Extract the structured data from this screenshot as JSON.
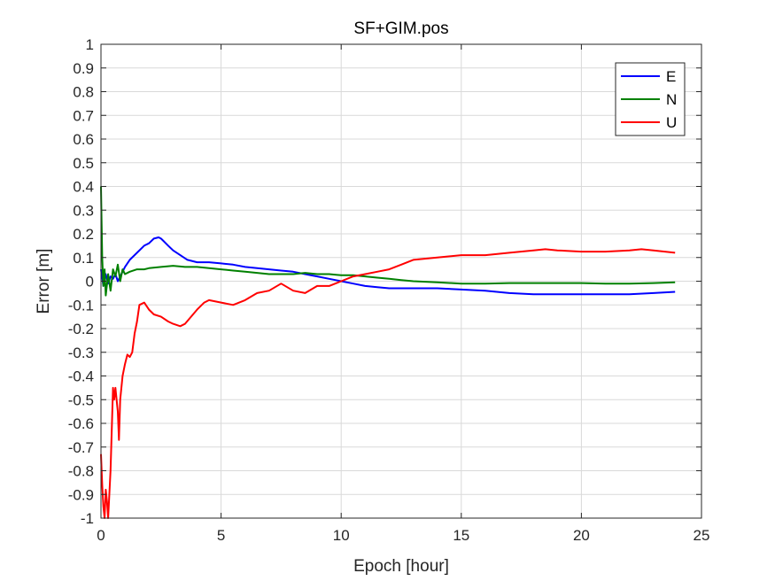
{
  "chart_data": {
    "type": "line",
    "title": "SF+GIM.pos",
    "xlabel": "Epoch [hour]",
    "ylabel": "Error [m]",
    "xlim": [
      0,
      25
    ],
    "ylim": [
      -1,
      1
    ],
    "xticks": [
      0,
      5,
      10,
      15,
      20,
      25
    ],
    "xtick_labels": [
      "0",
      "5",
      "10",
      "15",
      "20",
      "25"
    ],
    "yticks": [
      -1,
      -0.9,
      -0.8,
      -0.7,
      -0.6,
      -0.5,
      -0.4,
      -0.3,
      -0.2,
      -0.1,
      0,
      0.1,
      0.2,
      0.3,
      0.4,
      0.5,
      0.6,
      0.7,
      0.8,
      0.9,
      1
    ],
    "ytick_labels": [
      "-1",
      "-0.9",
      "-0.8",
      "-0.7",
      "-0.6",
      "-0.5",
      "-0.4",
      "-0.3",
      "-0.2",
      "-0.1",
      "0",
      "0.1",
      "0.2",
      "0.3",
      "0.4",
      "0.5",
      "0.6",
      "0.7",
      "0.8",
      "0.9",
      "1"
    ],
    "grid": true,
    "legend_position": "top-right",
    "series": [
      {
        "name": "E",
        "color": "#0000ff",
        "x": [
          0,
          0.1,
          0.2,
          0.3,
          0.4,
          0.5,
          0.6,
          0.7,
          0.8,
          0.9,
          1.0,
          1.2,
          1.5,
          1.8,
          2.0,
          2.2,
          2.4,
          2.5,
          2.6,
          2.8,
          3.0,
          3.3,
          3.6,
          4.0,
          4.5,
          5.0,
          5.5,
          6.0,
          6.5,
          7.0,
          7.5,
          8.0,
          8.5,
          9.0,
          9.5,
          10.0,
          10.5,
          11.0,
          11.5,
          12.0,
          12.5,
          13.0,
          14.0,
          15.0,
          16.0,
          17.0,
          18.0,
          19.0,
          20.0,
          21.0,
          22.0,
          23.0,
          23.9
        ],
        "y": [
          0.05,
          -0.02,
          0.03,
          -0.01,
          0.02,
          0.01,
          0.03,
          0.0,
          0.02,
          0.04,
          0.06,
          0.09,
          0.12,
          0.15,
          0.16,
          0.18,
          0.185,
          0.18,
          0.17,
          0.15,
          0.13,
          0.11,
          0.09,
          0.08,
          0.08,
          0.075,
          0.07,
          0.06,
          0.055,
          0.05,
          0.045,
          0.04,
          0.03,
          0.02,
          0.01,
          0.0,
          -0.01,
          -0.02,
          -0.025,
          -0.03,
          -0.03,
          -0.03,
          -0.03,
          -0.035,
          -0.04,
          -0.05,
          -0.055,
          -0.055,
          -0.055,
          -0.055,
          -0.055,
          -0.05,
          -0.045
        ]
      },
      {
        "name": "N",
        "color": "#008000",
        "x": [
          0,
          0.05,
          0.1,
          0.15,
          0.2,
          0.3,
          0.4,
          0.5,
          0.6,
          0.7,
          0.8,
          0.9,
          1.0,
          1.2,
          1.5,
          1.8,
          2.0,
          2.5,
          3.0,
          3.5,
          4.0,
          4.5,
          5.0,
          5.5,
          6.0,
          6.5,
          7.0,
          7.5,
          8.0,
          8.5,
          9.0,
          9.5,
          10.0,
          10.5,
          11.0,
          11.5,
          12.0,
          12.5,
          13.0,
          14.0,
          15.0,
          16.0,
          17.0,
          18.0,
          19.0,
          20.0,
          21.0,
          22.0,
          23.0,
          23.9
        ],
        "y": [
          0.4,
          0.1,
          -0.02,
          0.05,
          -0.06,
          0.03,
          -0.04,
          0.05,
          0.02,
          0.07,
          0.0,
          0.05,
          0.03,
          0.04,
          0.05,
          0.05,
          0.055,
          0.06,
          0.065,
          0.06,
          0.06,
          0.055,
          0.05,
          0.045,
          0.04,
          0.035,
          0.03,
          0.03,
          0.03,
          0.035,
          0.03,
          0.03,
          0.025,
          0.025,
          0.02,
          0.015,
          0.01,
          0.005,
          0.0,
          -0.005,
          -0.01,
          -0.01,
          -0.008,
          -0.008,
          -0.008,
          -0.008,
          -0.01,
          -0.01,
          -0.008,
          -0.005
        ]
      },
      {
        "name": "U",
        "color": "#ff0000",
        "x": [
          0,
          0.05,
          0.1,
          0.15,
          0.2,
          0.25,
          0.3,
          0.4,
          0.5,
          0.55,
          0.6,
          0.7,
          0.75,
          0.8,
          0.9,
          1.0,
          1.1,
          1.2,
          1.3,
          1.4,
          1.5,
          1.6,
          1.8,
          2.0,
          2.2,
          2.5,
          2.8,
          3.0,
          3.3,
          3.5,
          4.0,
          4.3,
          4.5,
          5.0,
          5.5,
          6.0,
          6.5,
          7.0,
          7.5,
          8.0,
          8.5,
          9.0,
          9.5,
          10.0,
          10.5,
          11.0,
          11.5,
          12.0,
          12.5,
          13.0,
          14.0,
          15.0,
          16.0,
          17.0,
          18.0,
          18.5,
          19.0,
          20.0,
          21.0,
          22.0,
          22.5,
          23.0,
          23.9
        ],
        "y": [
          -0.73,
          -0.86,
          -0.95,
          -1.0,
          -0.88,
          -0.93,
          -1.0,
          -0.8,
          -0.45,
          -0.5,
          -0.45,
          -0.55,
          -0.67,
          -0.5,
          -0.4,
          -0.35,
          -0.31,
          -0.32,
          -0.3,
          -0.22,
          -0.17,
          -0.1,
          -0.09,
          -0.12,
          -0.14,
          -0.15,
          -0.17,
          -0.18,
          -0.19,
          -0.18,
          -0.12,
          -0.09,
          -0.08,
          -0.09,
          -0.1,
          -0.08,
          -0.05,
          -0.04,
          -0.01,
          -0.04,
          -0.05,
          -0.02,
          -0.02,
          0.0,
          0.02,
          0.03,
          0.04,
          0.05,
          0.07,
          0.09,
          0.1,
          0.11,
          0.11,
          0.12,
          0.13,
          0.135,
          0.13,
          0.125,
          0.125,
          0.13,
          0.135,
          0.13,
          0.12
        ]
      }
    ]
  }
}
